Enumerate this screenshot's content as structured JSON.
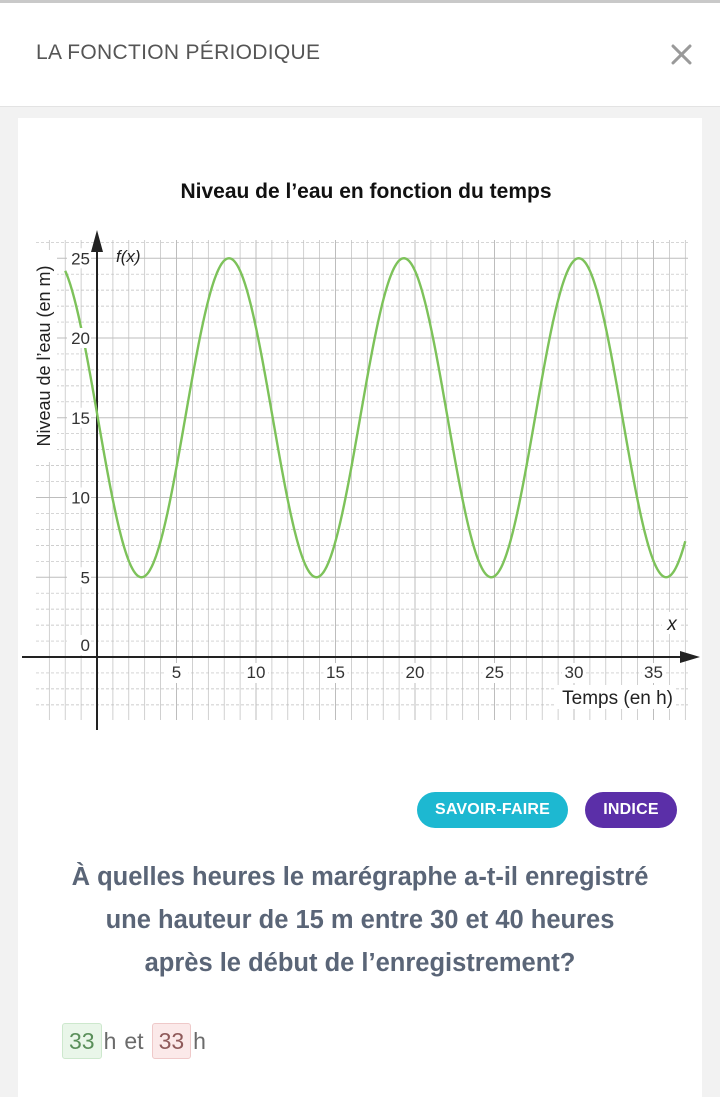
{
  "header": {
    "title": "LA FONCTION PÉRIODIQUE"
  },
  "chart_data": {
    "type": "line",
    "title": "Niveau de l’eau en fonction du temps",
    "xlabel": "Temps (en h)",
    "ylabel": "Niveau de l’eau (en m)",
    "x_axis_name": "x",
    "y_axis_name": "f(x)",
    "x_ticks": [
      "5",
      "10",
      "15",
      "20",
      "25",
      "30",
      "35"
    ],
    "y_ticks": [
      "0",
      "5",
      "10",
      "15",
      "20",
      "25"
    ],
    "xlim": [
      -4,
      37
    ],
    "ylim": [
      -4,
      26
    ],
    "grid": true,
    "function": {
      "form": "a*cos(b*(x-h))+k",
      "a": 10,
      "b": 0.5712,
      "h": 8.3,
      "k": 15,
      "period": 11
    },
    "x": [
      -2,
      -1,
      0,
      1,
      2,
      3,
      4,
      5,
      6,
      7,
      8.3,
      10,
      12,
      13.8,
      16,
      18,
      19.3,
      21,
      23,
      24.8,
      27,
      29,
      30.3,
      32,
      34,
      35.8,
      37
    ],
    "y": [
      24.1,
      21.3,
      15.3,
      9.4,
      5.9,
      5.4,
      8.0,
      12.9,
      18.3,
      22.6,
      25.0,
      21.7,
      9.3,
      5.0,
      10.8,
      22.3,
      25.0,
      21.7,
      9.3,
      5.0,
      10.8,
      22.3,
      25.0,
      21.7,
      9.3,
      5.0,
      6.2
    ],
    "colors": {
      "curve": "#7dc25a",
      "axes": "#222222",
      "grid": "#bdbdbd"
    }
  },
  "buttons": {
    "savoir": "SAVOIR-FAIRE",
    "indice": "INDICE"
  },
  "question": {
    "line1": "À quelles heures le marégraphe a-t-il enregistré",
    "line2": "une hauteur de 15 m entre 30 et 40 heures",
    "line3": "après le début de l’enregistrement?"
  },
  "answer": {
    "value1": "33",
    "unit1": "h",
    "connector": "et",
    "value2": "33",
    "unit2": "h"
  }
}
